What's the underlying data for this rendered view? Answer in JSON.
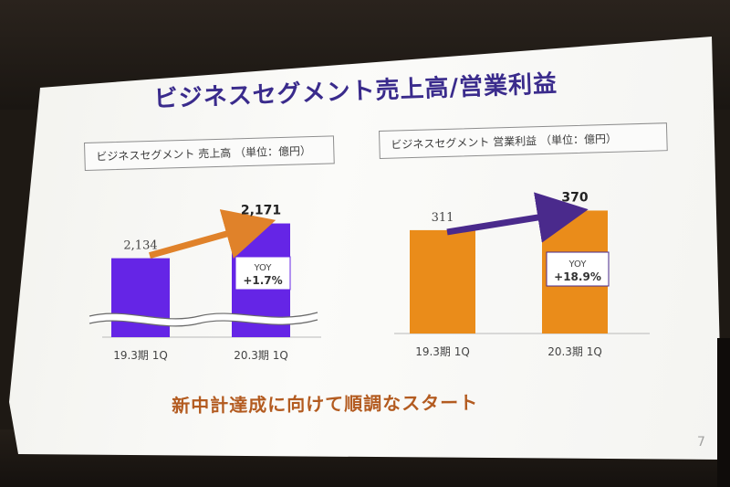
{
  "slide": {
    "title": "ビジネスセグメント売上高/営業利益",
    "slogan": "新中計達成に向けて順調なスタート",
    "page_number": "7"
  },
  "colors": {
    "sales_bar": "#6525e6",
    "profit_bar": "#ea8c1a",
    "sales_arrow": "#e0822a",
    "profit_arrow": "#4a2a8c",
    "title": "#3a2b8c",
    "slogan": "#b35b20"
  },
  "chart_data": [
    {
      "type": "bar",
      "title": "ビジネスセグメント 売上高 （単位：億円）",
      "categories": [
        "19.3期 1Q",
        "20.3期 1Q"
      ],
      "values": [
        2134,
        2171
      ],
      "value_labels": [
        "2,134",
        "2,171"
      ],
      "axis_break": true,
      "ylim": [
        2050,
        2190
      ],
      "yoy_label": "YOY",
      "yoy_value": "+1.7%"
    },
    {
      "type": "bar",
      "title": "ビジネスセグメント 営業利益 （単位：億円）",
      "categories": [
        "19.3期 1Q",
        "20.3期 1Q"
      ],
      "values": [
        311,
        370
      ],
      "value_labels": [
        "311",
        "370"
      ],
      "ylim": [
        0,
        385
      ],
      "yoy_label": "YOY",
      "yoy_value": "+18.9%"
    }
  ]
}
